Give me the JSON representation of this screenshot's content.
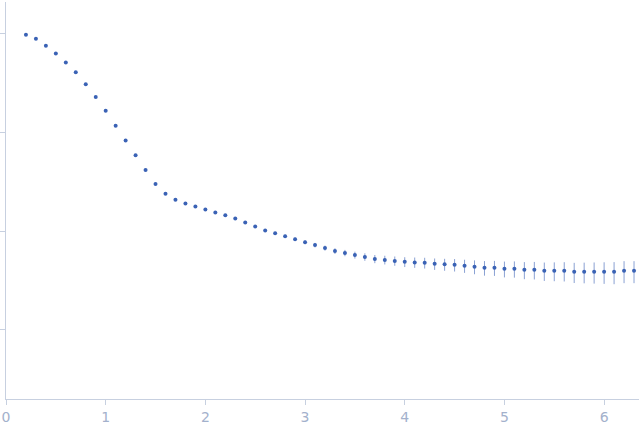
{
  "chart_data": {
    "type": "scatter",
    "marker": "circle",
    "color": "#3a62b5",
    "log": "y",
    "grid": false,
    "tick_labels": "x",
    "xlim": [
      0,
      6.35
    ],
    "xticks": [
      0,
      1,
      2,
      3,
      4,
      5,
      6
    ],
    "ylim": [
      0.0002,
      2.1
    ],
    "yticks": [
      0.001,
      0.01,
      0.1,
      1
    ],
    "x": [
      0.2,
      0.3,
      0.4,
      0.5,
      0.6,
      0.7,
      0.8,
      0.9,
      1.0,
      1.1,
      1.2,
      1.3,
      1.4,
      1.5,
      1.6,
      1.7,
      1.8,
      1.9,
      2.0,
      2.1,
      2.2,
      2.3,
      2.4,
      2.5,
      2.6,
      2.7,
      2.8,
      2.9,
      3.0,
      3.1,
      3.2,
      3.3,
      3.4,
      3.5,
      3.6,
      3.7,
      3.8,
      3.9,
      4.0,
      4.1,
      4.2,
      4.3,
      4.4,
      4.5,
      4.6,
      4.7,
      4.8,
      4.9,
      5.0,
      5.1,
      5.2,
      5.3,
      5.4,
      5.5,
      5.6,
      5.7,
      5.8,
      5.9,
      6.0,
      6.1,
      6.2,
      6.3
    ],
    "values": [
      0.977,
      0.891,
      0.759,
      0.631,
      0.513,
      0.407,
      0.309,
      0.229,
      0.166,
      0.117,
      0.0832,
      0.0589,
      0.0417,
      0.0302,
      0.024,
      0.0209,
      0.0191,
      0.0178,
      0.0166,
      0.0155,
      0.0145,
      0.0135,
      0.0123,
      0.0112,
      0.0102,
      0.00955,
      0.00891,
      0.00832,
      0.00776,
      0.00724,
      0.00676,
      0.00631,
      0.00603,
      0.00575,
      0.0055,
      0.00525,
      0.00513,
      0.00501,
      0.0049,
      0.00484,
      0.00479,
      0.00468,
      0.00462,
      0.00457,
      0.00447,
      0.00437,
      0.00427,
      0.00427,
      0.00417,
      0.00417,
      0.00407,
      0.00407,
      0.00398,
      0.00398,
      0.00398,
      0.00389,
      0.00389,
      0.00389,
      0.00389,
      0.00389,
      0.00398,
      0.00398
    ],
    "errors": [
      0.004,
      0.003,
      0.002,
      0.0015,
      0.001,
      0.0008,
      0.0006,
      0.0005,
      0.0004,
      0.0003,
      0.00025,
      0.0002,
      0.00018,
      0.00016,
      0.00015,
      0.00015,
      0.00015,
      0.00016,
      0.00017,
      0.00018,
      0.0002,
      0.00022,
      0.00024,
      0.00026,
      0.00028,
      0.0003,
      0.00032,
      0.00034,
      0.00036,
      0.00038,
      0.0004,
      0.00042,
      0.00044,
      0.00046,
      0.00048,
      0.0005,
      0.00052,
      0.00054,
      0.00056,
      0.00058,
      0.0006,
      0.00062,
      0.00064,
      0.00066,
      0.00068,
      0.0007,
      0.00072,
      0.00074,
      0.00076,
      0.00078,
      0.0008,
      0.00082,
      0.00084,
      0.00086,
      0.00088,
      0.0009,
      0.00092,
      0.00094,
      0.00096,
      0.00098,
      0.001,
      0.001
    ]
  }
}
